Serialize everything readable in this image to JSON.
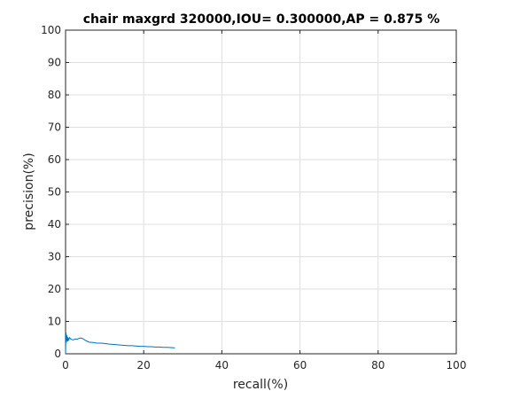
{
  "chart_data": {
    "type": "line",
    "title": "chair maxgrd 320000,IOU= 0.300000,AP = 0.875 %",
    "xlabel": "recall(%)",
    "ylabel": "precision(%)",
    "xlim": [
      0,
      100
    ],
    "ylim": [
      0,
      100
    ],
    "xticks": [
      0,
      20,
      40,
      60,
      80,
      100
    ],
    "yticks": [
      0,
      10,
      20,
      30,
      40,
      50,
      60,
      70,
      80,
      90,
      100
    ],
    "grid": true,
    "series": [
      {
        "color": "#0072bd",
        "x": [
          0.0,
          0.1,
          0.2,
          0.3,
          0.4,
          0.5,
          0.6,
          0.7,
          0.8,
          1.0,
          1.3,
          1.6,
          2.0,
          2.5,
          3.0,
          3.5,
          4.0,
          4.5,
          5.0,
          5.5,
          6.0,
          7.0,
          8.0,
          9.0,
          10.0,
          11.0,
          12.0,
          13.0,
          14.0,
          15.0,
          16.0,
          17.0,
          18.0,
          19.0,
          20.0,
          21.0,
          22.0,
          23.0,
          24.0,
          25.0,
          26.0,
          27.0,
          28.0
        ],
        "y": [
          0.0,
          6.5,
          3.5,
          5.8,
          4.0,
          5.2,
          3.8,
          4.8,
          4.2,
          5.0,
          4.6,
          4.4,
          4.3,
          4.6,
          4.5,
          4.8,
          4.9,
          4.6,
          4.2,
          3.9,
          3.6,
          3.5,
          3.3,
          3.3,
          3.2,
          3.0,
          2.9,
          2.8,
          2.7,
          2.6,
          2.5,
          2.5,
          2.4,
          2.3,
          2.3,
          2.2,
          2.2,
          2.1,
          2.1,
          2.0,
          2.0,
          1.9,
          1.8
        ]
      }
    ]
  }
}
